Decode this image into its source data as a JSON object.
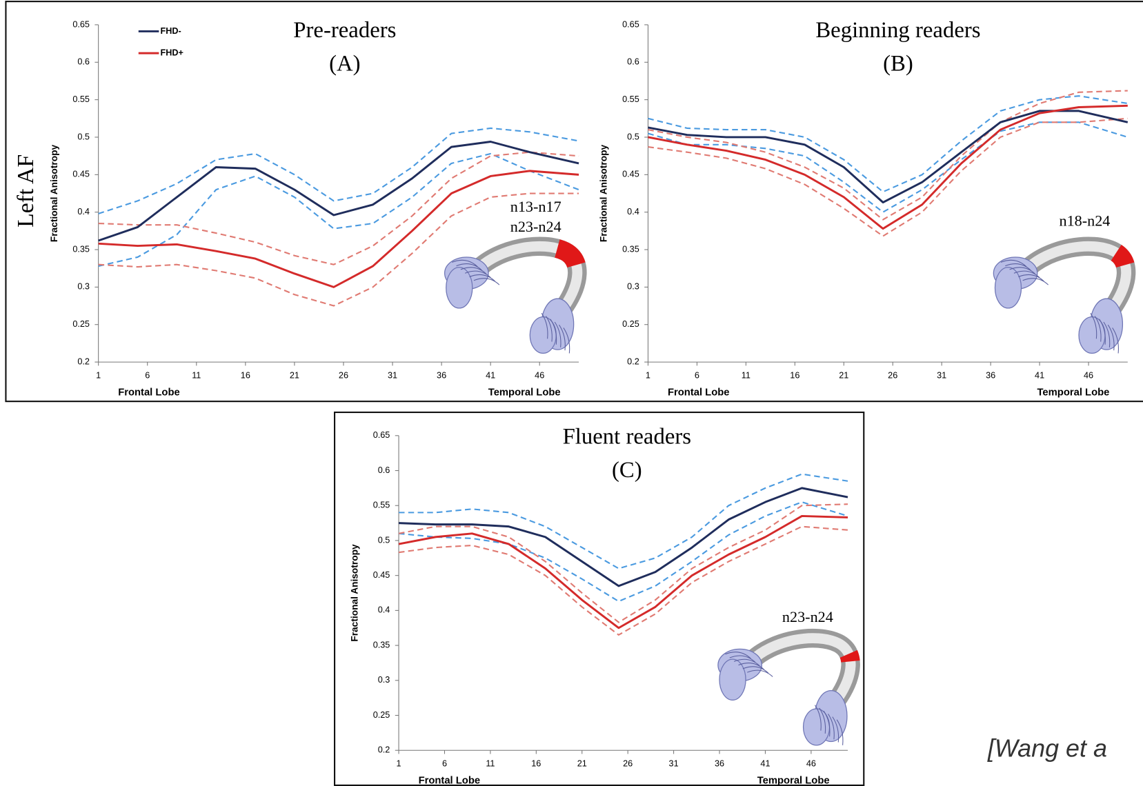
{
  "row_label": "Left AF",
  "citation": "[Wang et a",
  "chart_data": [
    {
      "type": "line",
      "title": "Pre-readers",
      "subtitle": "(A)",
      "annotations": [
        "n13-n17",
        "n23-n24"
      ],
      "y_label": "Fractional Anisotropy",
      "x_start_label": "Frontal Lobe",
      "x_end_label": "Temporal Lobe",
      "legend": "top-left",
      "x": [
        1,
        5,
        9,
        13,
        17,
        21,
        25,
        29,
        33,
        37,
        41,
        45,
        50
      ],
      "xlim": [
        1,
        50
      ],
      "xticks": [
        1,
        6,
        11,
        16,
        21,
        26,
        31,
        36,
        41,
        46
      ],
      "ylim": [
        0.2,
        0.65
      ],
      "yticks": [
        0.2,
        0.25,
        0.3,
        0.35,
        0.4,
        0.45,
        0.5,
        0.55,
        0.6,
        0.65
      ],
      "series": [
        {
          "name": "FHD-",
          "color": "#1f2d5c",
          "values": [
            0.362,
            0.38,
            0.42,
            0.46,
            0.458,
            0.43,
            0.396,
            0.41,
            0.445,
            0.487,
            0.494,
            0.48,
            0.465
          ]
        },
        {
          "name": "FHD+",
          "color": "#d42a2a",
          "values": [
            0.358,
            0.355,
            0.357,
            0.348,
            0.338,
            0.318,
            0.3,
            0.328,
            0.375,
            0.425,
            0.448,
            0.455,
            0.45
          ]
        },
        {
          "color": "#4a9ae0",
          "dashed": true,
          "values": [
            0.398,
            0.415,
            0.438,
            0.47,
            0.478,
            0.45,
            0.415,
            0.425,
            0.46,
            0.505,
            0.512,
            0.507,
            0.495
          ]
        },
        {
          "color": "#4a9ae0",
          "dashed": true,
          "values": [
            0.328,
            0.34,
            0.37,
            0.43,
            0.448,
            0.42,
            0.378,
            0.385,
            0.42,
            0.465,
            0.478,
            0.455,
            0.43
          ]
        },
        {
          "color": "#e07a72",
          "dashed": true,
          "values": [
            0.385,
            0.383,
            0.383,
            0.372,
            0.36,
            0.342,
            0.33,
            0.355,
            0.395,
            0.445,
            0.475,
            0.48,
            0.475
          ]
        },
        {
          "color": "#e07a72",
          "dashed": true,
          "values": [
            0.33,
            0.327,
            0.33,
            0.322,
            0.312,
            0.29,
            0.275,
            0.3,
            0.345,
            0.395,
            0.42,
            0.425,
            0.425
          ]
        }
      ]
    },
    {
      "type": "line",
      "title": "Beginning readers",
      "subtitle": "(B)",
      "annotations": [
        "n18-n24"
      ],
      "y_label": "Fractional Anisotropy",
      "x_start_label": "Frontal Lobe",
      "x_end_label": "Temporal Lobe",
      "x": [
        1,
        5,
        9,
        13,
        17,
        21,
        25,
        29,
        33,
        37,
        41,
        45,
        50
      ],
      "xlim": [
        1,
        50
      ],
      "xticks": [
        1,
        6,
        11,
        16,
        21,
        26,
        31,
        36,
        41,
        46
      ],
      "ylim": [
        0.2,
        0.65
      ],
      "yticks": [
        0.2,
        0.25,
        0.3,
        0.35,
        0.4,
        0.45,
        0.5,
        0.55,
        0.6,
        0.65
      ],
      "series": [
        {
          "color": "#1f2d5c",
          "values": [
            0.513,
            0.503,
            0.5,
            0.5,
            0.49,
            0.46,
            0.413,
            0.44,
            0.48,
            0.52,
            0.535,
            0.535,
            0.52
          ]
        },
        {
          "color": "#d42a2a",
          "values": [
            0.5,
            0.49,
            0.482,
            0.47,
            0.45,
            0.42,
            0.378,
            0.41,
            0.465,
            0.51,
            0.532,
            0.54,
            0.542
          ]
        },
        {
          "color": "#4a9ae0",
          "dashed": true,
          "values": [
            0.525,
            0.512,
            0.51,
            0.51,
            0.5,
            0.47,
            0.427,
            0.45,
            0.495,
            0.535,
            0.55,
            0.555,
            0.545
          ]
        },
        {
          "color": "#4a9ae0",
          "dashed": true,
          "values": [
            0.505,
            0.49,
            0.49,
            0.485,
            0.475,
            0.44,
            0.4,
            0.43,
            0.47,
            0.508,
            0.52,
            0.52,
            0.5
          ]
        },
        {
          "color": "#e07a72",
          "dashed": true,
          "values": [
            0.51,
            0.5,
            0.493,
            0.48,
            0.46,
            0.432,
            0.39,
            0.42,
            0.475,
            0.52,
            0.545,
            0.56,
            0.562
          ]
        },
        {
          "color": "#e07a72",
          "dashed": true,
          "values": [
            0.487,
            0.48,
            0.472,
            0.458,
            0.437,
            0.405,
            0.368,
            0.4,
            0.455,
            0.5,
            0.52,
            0.52,
            0.525
          ]
        }
      ]
    },
    {
      "type": "line",
      "title": "Fluent readers",
      "subtitle": "(C)",
      "annotations": [
        "n23-n24"
      ],
      "y_label": "Fractional Anisotropy",
      "x_start_label": "Frontal Lobe",
      "x_end_label": "Temporal Lobe",
      "x": [
        1,
        5,
        9,
        13,
        17,
        21,
        25,
        29,
        33,
        37,
        41,
        45,
        50
      ],
      "xlim": [
        1,
        50
      ],
      "xticks": [
        1,
        6,
        11,
        16,
        21,
        26,
        31,
        36,
        41,
        46
      ],
      "ylim": [
        0.2,
        0.65
      ],
      "yticks": [
        0.2,
        0.25,
        0.3,
        0.35,
        0.4,
        0.45,
        0.5,
        0.55,
        0.6,
        0.65
      ],
      "series": [
        {
          "color": "#1f2d5c",
          "values": [
            0.525,
            0.523,
            0.523,
            0.52,
            0.505,
            0.47,
            0.435,
            0.455,
            0.49,
            0.53,
            0.555,
            0.575,
            0.562
          ]
        },
        {
          "color": "#d42a2a",
          "values": [
            0.495,
            0.505,
            0.51,
            0.495,
            0.46,
            0.415,
            0.375,
            0.405,
            0.45,
            0.48,
            0.505,
            0.535,
            0.533
          ]
        },
        {
          "color": "#4a9ae0",
          "dashed": true,
          "values": [
            0.54,
            0.54,
            0.545,
            0.54,
            0.52,
            0.49,
            0.46,
            0.475,
            0.505,
            0.55,
            0.575,
            0.595,
            0.585
          ]
        },
        {
          "color": "#4a9ae0",
          "dashed": true,
          "values": [
            0.51,
            0.505,
            0.503,
            0.495,
            0.475,
            0.445,
            0.413,
            0.435,
            0.47,
            0.508,
            0.535,
            0.555,
            0.535
          ]
        },
        {
          "color": "#e07a72",
          "dashed": true,
          "values": [
            0.51,
            0.52,
            0.52,
            0.505,
            0.47,
            0.425,
            0.383,
            0.415,
            0.46,
            0.49,
            0.515,
            0.55,
            0.552
          ]
        },
        {
          "color": "#e07a72",
          "dashed": true,
          "values": [
            0.483,
            0.49,
            0.493,
            0.48,
            0.45,
            0.405,
            0.365,
            0.395,
            0.44,
            0.47,
            0.495,
            0.52,
            0.515
          ]
        }
      ]
    }
  ]
}
